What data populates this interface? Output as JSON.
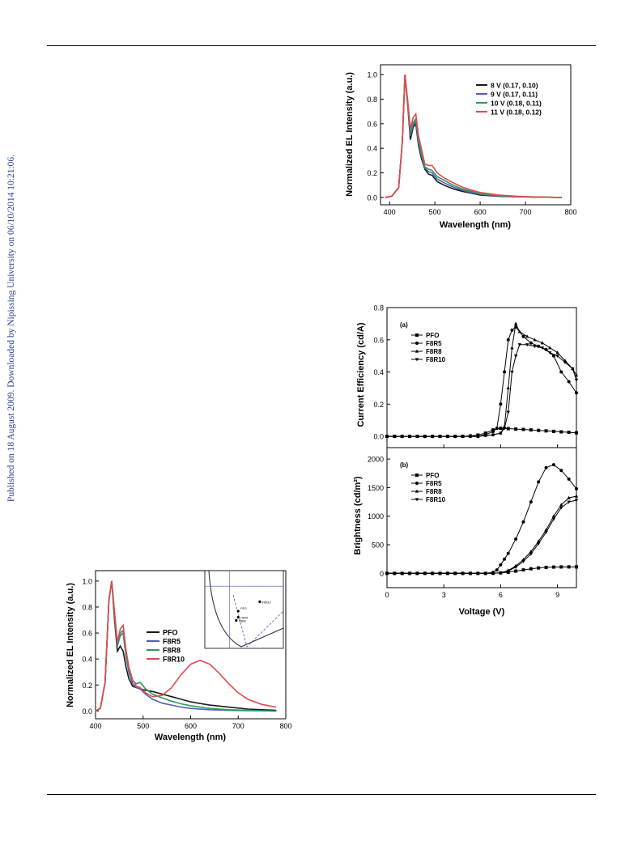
{
  "page": {
    "margin_note": "Published on 18 August 2009. Downloaded by Nipissing University on 06/10/2014 10:21:06."
  },
  "chart_data": [
    {
      "id": "voltage-el-spectra",
      "type": "line",
      "title": "",
      "xlabel": "Wavelength (nm)",
      "ylabel": "Normalized EL Intensity (a.u.)",
      "xlim": [
        380,
        800
      ],
      "ylim": [
        -0.06,
        1.08
      ],
      "xticks": [
        400,
        500,
        600,
        700,
        800
      ],
      "yticks": [
        0.0,
        0.2,
        0.4,
        0.6,
        0.8,
        1.0
      ],
      "ytick_labels": [
        "0.0",
        "0.2",
        "0.4",
        "0.6",
        "0.8",
        "1.0"
      ],
      "legend_position": "top-right",
      "series": [
        {
          "name": "8 V (0.17, 0.10)",
          "color": "#1a1a1a",
          "x": [
            390,
            405,
            420,
            428,
            434,
            440,
            446,
            452,
            458,
            464,
            470,
            478,
            486,
            494,
            505,
            520,
            540,
            560,
            580,
            600,
            640,
            680,
            720,
            780
          ],
          "y": [
            0.0,
            0.01,
            0.08,
            0.45,
            1.0,
            0.75,
            0.47,
            0.57,
            0.6,
            0.42,
            0.32,
            0.23,
            0.19,
            0.18,
            0.13,
            0.1,
            0.07,
            0.05,
            0.035,
            0.02,
            0.01,
            0.005,
            0.003,
            0.0
          ]
        },
        {
          "name": "9 V (0.17, 0.11)",
          "color": "#5060b0",
          "x": [
            390,
            405,
            420,
            428,
            434,
            440,
            446,
            452,
            458,
            464,
            470,
            478,
            486,
            494,
            505,
            520,
            540,
            560,
            580,
            600,
            640,
            680,
            720,
            780
          ],
          "y": [
            0.0,
            0.01,
            0.08,
            0.45,
            1.0,
            0.76,
            0.5,
            0.59,
            0.62,
            0.44,
            0.34,
            0.24,
            0.21,
            0.2,
            0.15,
            0.12,
            0.085,
            0.06,
            0.04,
            0.025,
            0.012,
            0.006,
            0.003,
            0.0
          ]
        },
        {
          "name": "10 V (0.18, 0.11)",
          "color": "#2a9a60",
          "x": [
            390,
            405,
            420,
            428,
            434,
            440,
            446,
            452,
            458,
            464,
            470,
            478,
            486,
            494,
            505,
            520,
            540,
            560,
            580,
            600,
            640,
            680,
            720,
            780
          ],
          "y": [
            0.0,
            0.01,
            0.08,
            0.45,
            1.0,
            0.77,
            0.53,
            0.61,
            0.64,
            0.46,
            0.36,
            0.25,
            0.23,
            0.22,
            0.17,
            0.14,
            0.1,
            0.07,
            0.05,
            0.03,
            0.015,
            0.007,
            0.003,
            0.0
          ]
        },
        {
          "name": "11 V (0.18, 0.12)",
          "color": "#e5484d",
          "x": [
            390,
            405,
            420,
            428,
            434,
            440,
            446,
            452,
            458,
            464,
            470,
            478,
            486,
            494,
            505,
            520,
            540,
            560,
            580,
            600,
            640,
            680,
            720,
            780
          ],
          "y": [
            0.0,
            0.01,
            0.08,
            0.45,
            1.0,
            0.79,
            0.56,
            0.65,
            0.68,
            0.5,
            0.4,
            0.27,
            0.26,
            0.26,
            0.2,
            0.16,
            0.12,
            0.085,
            0.06,
            0.04,
            0.02,
            0.01,
            0.004,
            0.0
          ]
        }
      ]
    },
    {
      "id": "current-efficiency",
      "type": "line",
      "panel_label": "(a)",
      "title": "",
      "xlabel": "",
      "ylabel": "Current Efficiency (cd/A)",
      "xlim": [
        0,
        10
      ],
      "ylim": [
        -0.07,
        0.8
      ],
      "yticks": [
        0.0,
        0.2,
        0.4,
        0.6,
        0.8
      ],
      "ytick_labels": [
        "0.0",
        "0.2",
        "0.4",
        "0.6",
        "0.8"
      ],
      "legend_position": "top-left",
      "series": [
        {
          "name": "PFO",
          "marker": "square",
          "x": [
            0,
            0.4,
            0.8,
            1.2,
            1.6,
            2.0,
            2.4,
            2.8,
            3.2,
            3.6,
            4.0,
            4.4,
            4.8,
            5.2,
            5.6,
            6.0,
            6.4,
            6.8,
            7.2,
            7.6,
            8.0,
            8.4,
            8.8,
            9.2,
            9.6,
            10.0
          ],
          "y": [
            0,
            0,
            0,
            0,
            0,
            0,
            0,
            0,
            0,
            0,
            0,
            0.003,
            0.008,
            0.02,
            0.04,
            0.05,
            0.048,
            0.045,
            0.043,
            0.04,
            0.037,
            0.034,
            0.031,
            0.028,
            0.025,
            0.022
          ]
        },
        {
          "name": "F8R5",
          "marker": "circle",
          "x": [
            0,
            0.4,
            0.8,
            1.2,
            1.6,
            2.0,
            2.4,
            2.8,
            3.2,
            3.6,
            4.0,
            4.4,
            4.8,
            5.2,
            5.6,
            5.8,
            6.0,
            6.2,
            6.4,
            6.6,
            6.8,
            7.2,
            7.6,
            8.0,
            8.4,
            8.8,
            9.2,
            9.6,
            10.0
          ],
          "y": [
            0,
            0,
            0,
            0,
            0,
            0,
            0,
            0,
            0,
            0,
            0,
            0,
            0,
            0.01,
            0.03,
            0.05,
            0.2,
            0.4,
            0.6,
            0.66,
            0.68,
            0.62,
            0.58,
            0.56,
            0.54,
            0.5,
            0.4,
            0.34,
            0.27
          ]
        },
        {
          "name": "F8R8",
          "marker": "triangle-up",
          "x": [
            0,
            0.4,
            0.8,
            1.2,
            1.6,
            2.0,
            2.4,
            2.8,
            3.2,
            3.6,
            4.0,
            4.4,
            4.8,
            5.2,
            5.6,
            6.0,
            6.2,
            6.4,
            6.6,
            6.8,
            7.0,
            7.4,
            7.8,
            8.2,
            8.6,
            9.0,
            9.4,
            9.8,
            10.0
          ],
          "y": [
            0,
            0,
            0,
            0,
            0,
            0,
            0,
            0,
            0,
            0,
            0,
            0,
            0,
            0.005,
            0.01,
            0.02,
            0.06,
            0.3,
            0.55,
            0.7,
            0.65,
            0.62,
            0.6,
            0.58,
            0.55,
            0.52,
            0.47,
            0.42,
            0.38
          ]
        },
        {
          "name": "F8R10",
          "marker": "triangle-down",
          "x": [
            0,
            0.4,
            0.8,
            1.2,
            1.6,
            2.0,
            2.4,
            2.8,
            3.2,
            3.6,
            4.0,
            4.4,
            4.8,
            5.2,
            5.6,
            6.0,
            6.2,
            6.4,
            6.6,
            6.8,
            7.0,
            7.4,
            7.8,
            8.2,
            8.6,
            9.0,
            9.4,
            9.8,
            10.0
          ],
          "y": [
            0,
            0,
            0,
            0,
            0,
            0,
            0,
            0,
            0,
            0,
            0,
            0,
            0,
            0.005,
            0.01,
            0.02,
            0.05,
            0.15,
            0.4,
            0.5,
            0.57,
            0.57,
            0.56,
            0.55,
            0.52,
            0.5,
            0.46,
            0.42,
            0.35
          ]
        }
      ]
    },
    {
      "id": "brightness",
      "type": "line",
      "panel_label": "(b)",
      "title": "",
      "xlabel": "Voltage (V)",
      "ylabel": "Brightness (cd/m²)",
      "xlim": [
        0,
        10
      ],
      "ylim": [
        -250,
        2200
      ],
      "xticks": [
        0,
        3,
        6,
        9
      ],
      "yticks": [
        0,
        500,
        1000,
        1500,
        2000
      ],
      "legend_position": "top-left",
      "series": [
        {
          "name": "PFO",
          "marker": "square",
          "x": [
            0,
            0.4,
            0.8,
            1.2,
            1.6,
            2.0,
            2.4,
            2.8,
            3.2,
            3.6,
            4.0,
            4.4,
            4.8,
            5.2,
            5.6,
            6.0,
            6.4,
            6.8,
            7.2,
            7.6,
            8.0,
            8.4,
            8.8,
            9.2,
            9.6,
            10.0
          ],
          "y": [
            0,
            0,
            0,
            0,
            0,
            0,
            0,
            0,
            0,
            0,
            0,
            0,
            0,
            0,
            2,
            8,
            20,
            40,
            60,
            80,
            95,
            105,
            110,
            112,
            113,
            113
          ]
        },
        {
          "name": "F8R5",
          "marker": "circle",
          "x": [
            0,
            0.4,
            0.8,
            1.2,
            1.6,
            2.0,
            2.4,
            2.8,
            3.2,
            3.6,
            4.0,
            4.4,
            4.8,
            5.2,
            5.6,
            5.8,
            6.0,
            6.2,
            6.4,
            6.8,
            7.2,
            7.6,
            8.0,
            8.4,
            8.8,
            9.2,
            9.6,
            10.0
          ],
          "y": [
            0,
            0,
            0,
            0,
            0,
            0,
            0,
            0,
            0,
            0,
            0,
            0,
            0,
            0,
            15,
            60,
            150,
            250,
            350,
            600,
            900,
            1250,
            1600,
            1850,
            1900,
            1800,
            1650,
            1480
          ]
        },
        {
          "name": "F8R8",
          "marker": "triangle-up",
          "x": [
            0,
            0.4,
            0.8,
            1.2,
            1.6,
            2.0,
            2.4,
            2.8,
            3.2,
            3.6,
            4.0,
            4.4,
            4.8,
            5.2,
            5.6,
            6.0,
            6.4,
            6.8,
            7.2,
            7.6,
            8.0,
            8.4,
            8.8,
            9.2,
            9.6,
            10.0
          ],
          "y": [
            0,
            0,
            0,
            0,
            0,
            0,
            0,
            0,
            0,
            0,
            0,
            0,
            0,
            0,
            0,
            10,
            50,
            130,
            240,
            380,
            560,
            760,
            1000,
            1200,
            1320,
            1350
          ]
        },
        {
          "name": "F8R10",
          "marker": "triangle-down",
          "x": [
            0,
            0.4,
            0.8,
            1.2,
            1.6,
            2.0,
            2.4,
            2.8,
            3.2,
            3.6,
            4.0,
            4.4,
            4.8,
            5.2,
            5.6,
            6.0,
            6.4,
            6.8,
            7.2,
            7.6,
            8.0,
            8.4,
            8.8,
            9.2,
            9.6,
            10.0
          ],
          "y": [
            0,
            0,
            0,
            0,
            0,
            0,
            0,
            0,
            0,
            0,
            0,
            0,
            0,
            0,
            0,
            8,
            40,
            110,
            210,
            340,
            520,
            720,
            950,
            1150,
            1250,
            1280
          ]
        }
      ]
    },
    {
      "id": "polymer-el-spectra",
      "type": "line",
      "title": "",
      "xlabel": "Wavelength (nm)",
      "ylabel": "Normalized EL Intensity (a.u.)",
      "xlim": [
        400,
        800
      ],
      "ylim": [
        -0.06,
        1.08
      ],
      "xticks": [
        400,
        500,
        600,
        700,
        800
      ],
      "yticks": [
        0.0,
        0.2,
        0.4,
        0.6,
        0.8,
        1.0
      ],
      "ytick_labels": [
        "0.0",
        "0.2",
        "0.4",
        "0.6",
        "0.8",
        "1.0"
      ],
      "legend_position": "center-right",
      "series": [
        {
          "name": "PFO",
          "color": "#1a1a1a",
          "x": [
            400,
            410,
            420,
            428,
            434,
            440,
            446,
            452,
            458,
            464,
            470,
            478,
            486,
            494,
            505,
            520,
            540,
            560,
            580,
            600,
            640,
            680,
            720,
            780
          ],
          "y": [
            0.0,
            0.02,
            0.22,
            0.85,
            1.0,
            0.7,
            0.46,
            0.5,
            0.46,
            0.34,
            0.25,
            0.19,
            0.18,
            0.17,
            0.16,
            0.15,
            0.13,
            0.11,
            0.09,
            0.07,
            0.045,
            0.03,
            0.015,
            0.005
          ]
        },
        {
          "name": "F8R5",
          "color": "#5060b0",
          "x": [
            400,
            410,
            420,
            428,
            434,
            440,
            446,
            452,
            458,
            464,
            470,
            478,
            486,
            494,
            505,
            520,
            540,
            560,
            580,
            600,
            640,
            680,
            720,
            780
          ],
          "y": [
            0.0,
            0.02,
            0.22,
            0.85,
            1.0,
            0.74,
            0.5,
            0.58,
            0.6,
            0.42,
            0.3,
            0.21,
            0.18,
            0.17,
            0.13,
            0.09,
            0.06,
            0.045,
            0.03,
            0.02,
            0.01,
            0.005,
            0.002,
            0.0
          ]
        },
        {
          "name": "F8R8",
          "color": "#2a9a60",
          "x": [
            400,
            410,
            420,
            428,
            434,
            440,
            446,
            452,
            458,
            464,
            470,
            478,
            486,
            494,
            505,
            520,
            540,
            560,
            580,
            600,
            640,
            680,
            720,
            780
          ],
          "y": [
            0.0,
            0.02,
            0.22,
            0.85,
            1.0,
            0.73,
            0.51,
            0.6,
            0.62,
            0.44,
            0.32,
            0.23,
            0.21,
            0.22,
            0.17,
            0.13,
            0.1,
            0.075,
            0.055,
            0.04,
            0.02,
            0.01,
            0.005,
            0.0
          ]
        },
        {
          "name": "F8R10",
          "color": "#e5484d",
          "x": [
            400,
            410,
            420,
            428,
            434,
            440,
            446,
            452,
            458,
            464,
            470,
            478,
            486,
            494,
            505,
            520,
            540,
            560,
            580,
            600,
            620,
            640,
            660,
            680,
            700,
            720,
            750,
            780
          ],
          "y": [
            0.0,
            0.02,
            0.22,
            0.85,
            1.0,
            0.76,
            0.53,
            0.63,
            0.66,
            0.47,
            0.34,
            0.24,
            0.19,
            0.18,
            0.14,
            0.11,
            0.12,
            0.18,
            0.28,
            0.36,
            0.39,
            0.36,
            0.29,
            0.21,
            0.14,
            0.09,
            0.05,
            0.03
          ]
        }
      ]
    },
    {
      "id": "cie-inset",
      "type": "scatter",
      "title": "",
      "xlabel": "",
      "ylabel": "",
      "points": [
        {
          "label": "PFO",
          "x": 0.17,
          "y": 0.12
        },
        {
          "label": "F8R5",
          "x": 0.17,
          "y": 0.1
        },
        {
          "label": "F8R8",
          "x": 0.16,
          "y": 0.09
        },
        {
          "label": "F8R10",
          "x": 0.28,
          "y": 0.15
        }
      ]
    }
  ]
}
